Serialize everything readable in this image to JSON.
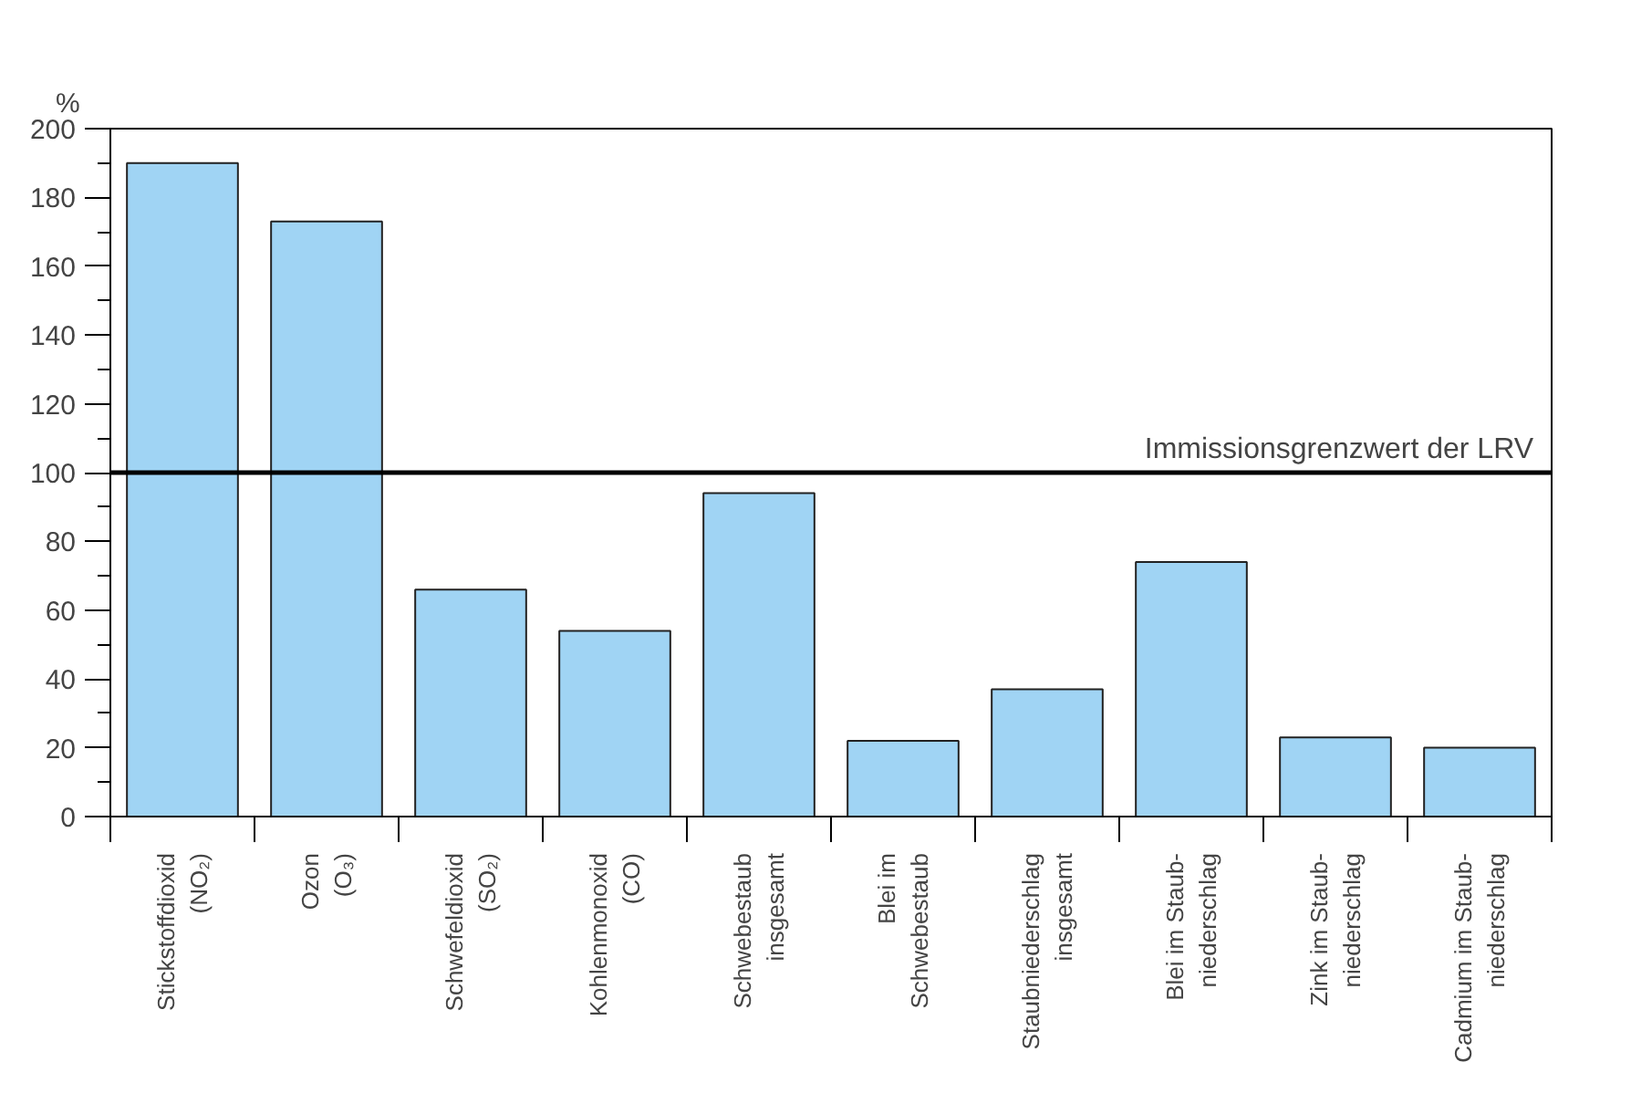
{
  "chart_data": {
    "type": "bar",
    "ylabel": "%",
    "categories": [
      "Stickstoffdioxid\n(NO₂)",
      "Ozon\n(O₃)",
      "Schwefeldioxid\n(SO₂)",
      "Kohlenmonoxid\n(CO)",
      "Schwebestaub\ninsgesamt",
      "Blei im\nSchwebestaub",
      "Staubniederschlag\ninsgesamt",
      "Blei im Staub-\nniederschlag",
      "Zink im Staub-\nniederschlag",
      "Cadmium im Staub-\nniederschlag"
    ],
    "values": [
      190,
      173,
      66,
      54,
      94,
      22,
      37,
      74,
      23,
      20
    ],
    "color": "#a0d4f4",
    "ylim": [
      0,
      200
    ],
    "yticks": [
      0,
      20,
      40,
      60,
      80,
      100,
      120,
      140,
      160,
      180,
      200
    ],
    "grid": false,
    "ref_lines": [
      {
        "axis": "y",
        "value": 100,
        "label": "Immissionsgrenzwert der LRV",
        "color": "#000000"
      }
    ]
  }
}
